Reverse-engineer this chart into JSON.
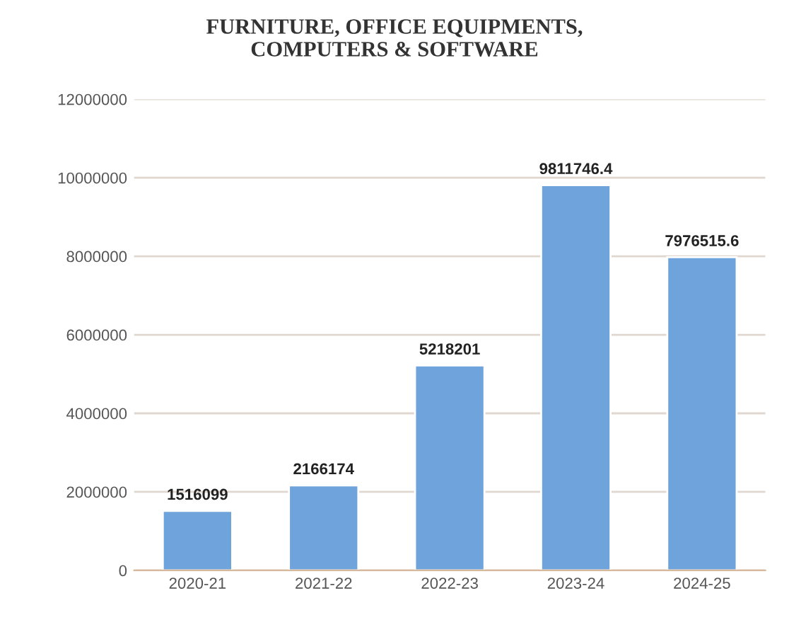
{
  "chart_data": {
    "type": "bar",
    "title": "FURNITURE, OFFICE EQUIPMENTS,\nCOMPUTERS & SOFTWARE",
    "categories": [
      "2020-21",
      "2021-22",
      "2022-23",
      "2023-24",
      "2024-25"
    ],
    "values": [
      1516099,
      2166174,
      5218201,
      9811746.4,
      7976515.6
    ],
    "color": "#6fa3dc",
    "ylim": [
      0,
      12000000
    ],
    "yticks": [
      0,
      2000000,
      4000000,
      6000000,
      8000000,
      10000000,
      12000000
    ],
    "grid": "y",
    "data_labels": true
  }
}
